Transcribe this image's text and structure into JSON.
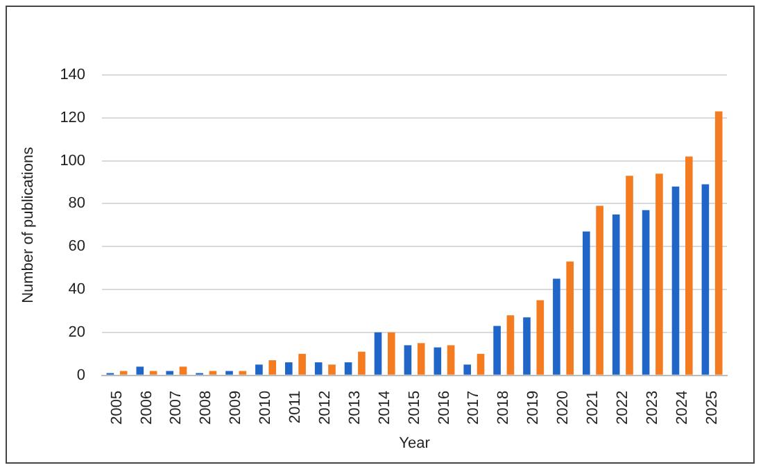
{
  "chart_data": {
    "type": "bar",
    "xlabel": "Year",
    "ylabel": "Number of publications",
    "categories": [
      "2005",
      "2006",
      "2007",
      "2008",
      "2009",
      "2010",
      "2011",
      "2012",
      "2013",
      "2014",
      "2015",
      "2016",
      "2017",
      "2018",
      "2019",
      "2020",
      "2021",
      "2022",
      "2023",
      "2024",
      "2025"
    ],
    "series": [
      {
        "color": "#1f66c8",
        "values": [
          1,
          4,
          2,
          1,
          2,
          5,
          6,
          6,
          6,
          20,
          14,
          13,
          5,
          23,
          27,
          45,
          67,
          75,
          77,
          88,
          89
        ]
      },
      {
        "color": "#f57b20",
        "values": [
          2,
          2,
          4,
          2,
          2,
          7,
          10,
          5,
          11,
          20,
          15,
          14,
          10,
          28,
          35,
          53,
          79,
          93,
          94,
          102,
          123
        ]
      }
    ],
    "ylim": [
      0,
      140
    ],
    "yticks": [
      0,
      20,
      40,
      60,
      80,
      100,
      120,
      140
    ],
    "grid": "y"
  }
}
